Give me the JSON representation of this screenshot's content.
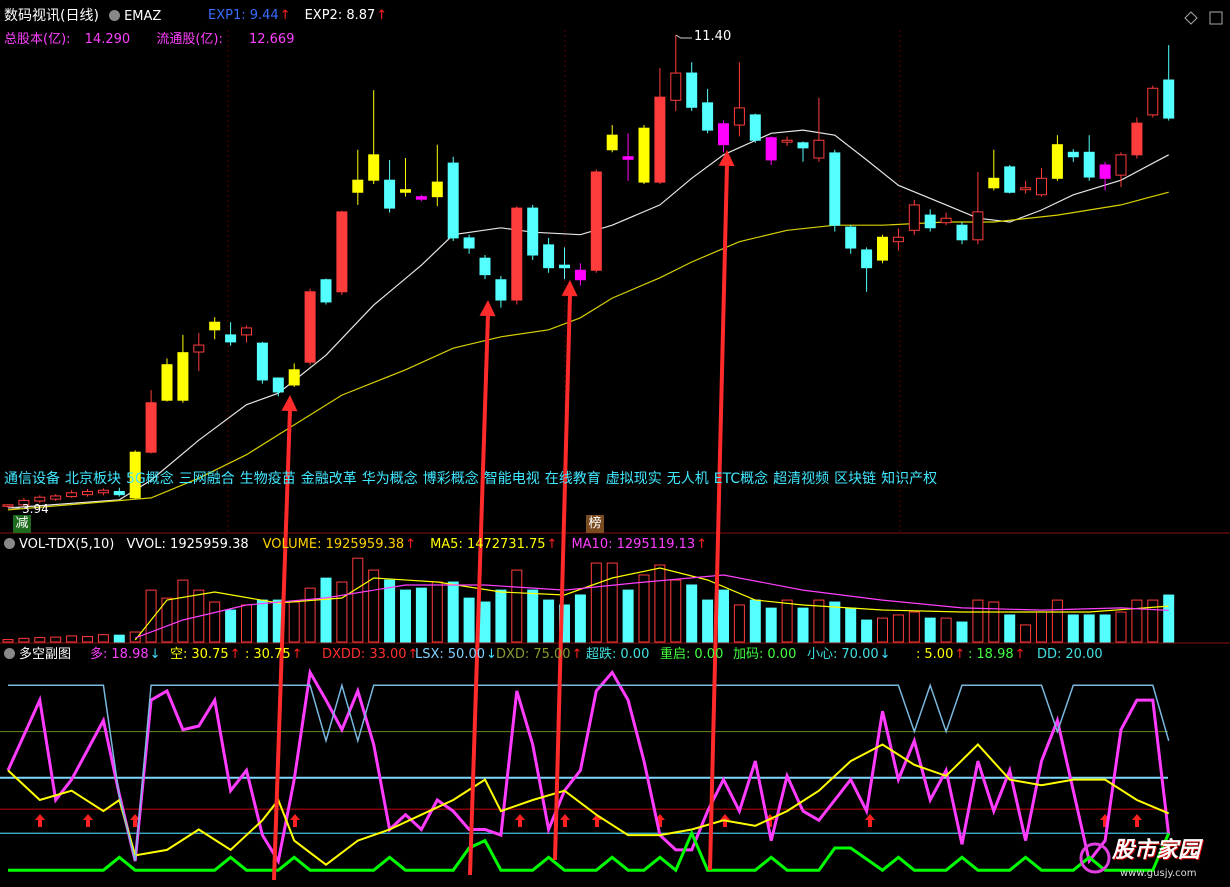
{
  "header": {
    "title": "数码视讯(日线)",
    "indicator": "EMAZ",
    "exp": [
      {
        "text": "EXP1: 9.44",
        "color": "#3a6cff",
        "arrow": "↑"
      },
      {
        "text": "EXP2: 8.87",
        "color": "#ffffff",
        "arrow": "↑"
      }
    ],
    "share_info": [
      {
        "label": "总股本(亿):",
        "value": "14.290"
      },
      {
        "label": "流通股(亿):",
        "value": "12.669"
      }
    ],
    "concepts": [
      "通信设备",
      "北京板块",
      "5G概念",
      "三网融合",
      "生物疫苗",
      "金融改革",
      "华为概念",
      "博彩概念",
      "智能电视",
      "在线教育",
      "虚拟现实",
      "无人机",
      "ETC概念",
      "超清视频",
      "区块链",
      "知识产权"
    ],
    "tags": [
      "减",
      "榜"
    ],
    "max_label": "11.40",
    "min_label": "3.94"
  },
  "chart_data": [
    {
      "type": "candlestick",
      "ylim": [
        3.94,
        11.4
      ],
      "open": [
        3.97,
        3.99,
        4.05,
        4.08,
        4.12,
        4.15,
        4.18,
        4.2,
        4.1,
        4.82,
        5.64,
        5.64,
        6.4,
        6.75,
        6.67,
        6.67,
        6.54,
        5.99,
        5.88,
        6.24,
        7.54,
        7.35,
        8.92,
        9.11,
        9.11,
        8.96,
        8.85,
        8.85,
        9.38,
        8.2,
        7.88,
        7.54,
        7.22,
        8.67,
        8.09,
        7.77,
        7.69,
        7.69,
        9.59,
        9.48,
        9.08,
        9.08,
        10.37,
        10.8,
        10.33,
        10.0,
        9.98,
        10.14,
        9.78,
        9.71,
        9.7,
        9.46,
        9.54,
        8.37,
        8.01,
        7.85,
        8.14,
        8.32,
        8.56,
        8.44,
        8.4,
        8.17,
        8.99,
        9.32,
        8.96,
        8.88,
        9.14,
        9.55,
        9.55,
        9.35,
        9.19,
        9.51,
        10.14,
        10.69
      ],
      "high": [
        4.0,
        4.1,
        4.14,
        4.16,
        4.22,
        4.24,
        4.25,
        4.26,
        4.85,
        5.8,
        6.3,
        6.67,
        6.7,
        6.95,
        6.87,
        6.82,
        6.56,
        6.0,
        6.22,
        7.4,
        7.56,
        8.63,
        9.59,
        10.53,
        9.43,
        9.46,
        8.88,
        9.67,
        9.48,
        8.25,
        7.93,
        7.6,
        8.7,
        8.72,
        8.2,
        8.05,
        7.8,
        9.28,
        9.98,
        9.85,
        9.98,
        10.88,
        11.4,
        10.97,
        10.55,
        10.05,
        10.97,
        10.16,
        9.8,
        9.8,
        9.72,
        10.41,
        9.59,
        8.4,
        8.05,
        8.25,
        8.35,
        8.8,
        8.65,
        8.6,
        8.45,
        9.24,
        9.59,
        9.35,
        9.1,
        9.3,
        9.82,
        9.6,
        9.82,
        9.4,
        9.55,
        10.1,
        10.6,
        11.24
      ],
      "low": [
        3.94,
        3.97,
        4.02,
        4.05,
        4.1,
        4.12,
        4.14,
        4.12,
        4.08,
        4.8,
        5.62,
        5.6,
        6.1,
        6.6,
        6.5,
        6.55,
        5.9,
        5.7,
        5.85,
        6.2,
        7.15,
        7.3,
        8.72,
        9.05,
        8.6,
        8.85,
        8.78,
        8.7,
        8.15,
        7.95,
        7.55,
        7.1,
        7.15,
        7.85,
        7.65,
        7.55,
        7.45,
        7.65,
        9.55,
        9.1,
        9.05,
        9.05,
        10.2,
        10.2,
        9.85,
        9.55,
        9.8,
        9.7,
        9.35,
        9.65,
        9.4,
        9.4,
        8.3,
        7.95,
        7.35,
        7.8,
        8.0,
        8.25,
        8.3,
        8.4,
        8.1,
        8.1,
        8.95,
        8.9,
        8.9,
        8.85,
        9.1,
        9.4,
        9.1,
        8.95,
        9.0,
        9.45,
        10.1,
        10.05
      ],
      "close": [
        3.99,
        4.06,
        4.11,
        4.13,
        4.18,
        4.2,
        4.22,
        4.15,
        4.82,
        5.6,
        6.2,
        6.39,
        6.51,
        6.87,
        6.56,
        6.78,
        5.96,
        5.77,
        6.12,
        7.35,
        7.19,
        8.61,
        9.11,
        9.51,
        8.67,
        8.92,
        8.81,
        9.08,
        8.2,
        8.04,
        7.62,
        7.22,
        8.67,
        7.93,
        7.73,
        7.73,
        7.54,
        9.24,
        9.82,
        9.44,
        9.93,
        10.42,
        10.8,
        10.26,
        9.9,
        9.67,
        10.25,
        9.74,
        9.43,
        9.74,
        9.62,
        9.74,
        8.4,
        8.04,
        7.73,
        8.21,
        8.21,
        8.72,
        8.36,
        8.51,
        8.17,
        8.61,
        9.14,
        8.92,
        8.99,
        9.14,
        9.67,
        9.48,
        9.16,
        9.14,
        9.51,
        10.01,
        10.56,
        10.09
      ],
      "colors": [
        "#ff3c3c",
        "#ff3c3c",
        "#ff3c3c",
        "#ff3c3c",
        "#ff3c3c",
        "#ff3c3c",
        "#ff3c3c",
        "#54ffff",
        "#ffff00",
        "#ff3c3c",
        "#ffff00",
        "#ffff00",
        "#ff3c3c",
        "#ffff00",
        "#54ffff",
        "#ff3c3c",
        "#54ffff",
        "#54ffff",
        "#ffff00",
        "#ff3c3c",
        "#54ffff",
        "#ff3c3c",
        "#ffff00",
        "#ffff00",
        "#54ffff",
        "#ffff00",
        "#ff00ff",
        "#ffff00",
        "#54ffff",
        "#54ffff",
        "#54ffff",
        "#54ffff",
        "#ff3c3c",
        "#54ffff",
        "#54ffff",
        "#54ffff",
        "#ff00ff",
        "#ff3c3c",
        "#ffff00",
        "#ff00ff",
        "#ffff00",
        "#ff3c3c",
        "#ff3c3c",
        "#54ffff",
        "#54ffff",
        "#ff00ff",
        "#ff3c3c",
        "#54ffff",
        "#ff00ff",
        "#ff3c3c",
        "#54ffff",
        "#ff3c3c",
        "#54ffff",
        "#54ffff",
        "#54ffff",
        "#ffff00",
        "#ff3c3c",
        "#ff3c3c",
        "#54ffff",
        "#ff3c3c",
        "#54ffff",
        "#ff3c3c",
        "#ffff00",
        "#54ffff",
        "#ff3c3c",
        "#ff3c3c",
        "#ffff00",
        "#54ffff",
        "#54ffff",
        "#ff00ff",
        "#ff3c3c",
        "#ff3c3c",
        "#ff3c3c",
        "#54ffff"
      ],
      "lines": [
        {
          "color": "#e6e6e6",
          "x": [
            0,
            7,
            9,
            12,
            15,
            17,
            20,
            23,
            26,
            28,
            31,
            33,
            36,
            38,
            41,
            43,
            45,
            48,
            50,
            52,
            54,
            56,
            59,
            61,
            63,
            65,
            67,
            70,
            73
          ],
          "values": [
            3.94,
            4.07,
            4.38,
            5.01,
            5.57,
            5.75,
            6.35,
            7.14,
            7.77,
            8.25,
            8.36,
            8.29,
            8.25,
            8.4,
            8.72,
            9.14,
            9.51,
            9.85,
            9.9,
            9.82,
            9.43,
            9.03,
            8.72,
            8.51,
            8.45,
            8.64,
            8.88,
            9.11,
            9.51
          ]
        },
        {
          "color": "#d8d000",
          "x": [
            0,
            9,
            12,
            15,
            18,
            21,
            25,
            28,
            31,
            34,
            36,
            38,
            41,
            43,
            46,
            49,
            52,
            55,
            59,
            62,
            66,
            70,
            73
          ],
          "values": [
            3.91,
            4.1,
            4.41,
            4.78,
            5.25,
            5.72,
            6.12,
            6.46,
            6.64,
            6.75,
            6.94,
            7.25,
            7.57,
            7.82,
            8.14,
            8.32,
            8.4,
            8.4,
            8.45,
            8.45,
            8.56,
            8.72,
            8.92
          ]
        }
      ]
    },
    {
      "type": "bar",
      "title": "VOL-TDX(5,10)",
      "ylim": [
        0,
        3570000
      ],
      "items": [
        {
          "text": "VVOL: 1925959.38",
          "color": "#ffffff"
        },
        {
          "text": "VOLUME: 1925959.38",
          "color": "#ffd200",
          "arrow": "↑"
        },
        {
          "text": "MA5: 1472731.75",
          "color": "#ffff00",
          "arrow": "↑"
        },
        {
          "text": "MA10: 1295119.13",
          "color": "#ff40ff",
          "arrow": "↑"
        }
      ],
      "values": [
        100000,
        150000,
        180000,
        200000,
        250000,
        220000,
        300000,
        280000,
        410000,
        2130000,
        1800000,
        2540000,
        2130000,
        1640000,
        1310000,
        1520000,
        1720000,
        1720000,
        1640000,
        2210000,
        2620000,
        2460000,
        3440000,
        2950000,
        2540000,
        2130000,
        2210000,
        2460000,
        2460000,
        1800000,
        1640000,
        2130000,
        2950000,
        2130000,
        1720000,
        1520000,
        1930000,
        3240000,
        3240000,
        2130000,
        2750000,
        3160000,
        2540000,
        2340000,
        1720000,
        2130000,
        1520000,
        1720000,
        1390000,
        1720000,
        1390000,
        1720000,
        1640000,
        1390000,
        900000,
        980000,
        1110000,
        1230000,
        980000,
        980000,
        820000,
        1720000,
        1640000,
        1110000,
        700000,
        1230000,
        1720000,
        1110000,
        1110000,
        1110000,
        1230000,
        1720000,
        1720000,
        1925959.38
      ],
      "lines": [
        {
          "color": "#ffff00",
          "x": [
            8,
            10,
            13,
            17,
            21,
            23,
            27,
            31,
            35,
            38,
            41,
            44,
            47,
            50,
            55,
            60,
            64,
            68,
            73
          ],
          "values": [
            82000,
            1723000,
            2052000,
            1600000,
            1805000,
            2626000,
            2462000,
            2052000,
            1929000,
            2626000,
            3037000,
            2544000,
            1723000,
            1518000,
            1313000,
            1231000,
            1231000,
            1231000,
            1472731.75
          ]
        },
        {
          "color": "#ff40ff",
          "x": [
            8,
            11,
            15,
            20,
            25,
            30,
            35,
            40,
            45,
            50,
            55,
            60,
            65,
            70,
            73
          ],
          "values": [
            164000,
            903000,
            1520000,
            1810000,
            2340000,
            2340000,
            2130000,
            2460000,
            2750000,
            2130000,
            1720000,
            1400000,
            1310000,
            1400000,
            1295119.13
          ]
        }
      ]
    },
    {
      "type": "line",
      "title": "多空副图",
      "ylim": [
        -8,
        111
      ],
      "items": [
        {
          "name": "多:",
          "value": 18.98,
          "label": "18.98",
          "color": "#ff40ff",
          "arrow": "↓",
          "arrow_color": "#40e0ff"
        },
        {
          "name": "空:",
          "value": 30.75,
          "label": "30.75",
          "color": "#ffff00",
          "arrow": "↑",
          "arrow_color": "#ff2020"
        },
        {
          "name": ":",
          "value": 30.75,
          "label": "30.75",
          "color": "#ffff00",
          "arrow": "↑",
          "arrow_color": "#ff2020"
        },
        {
          "name": "DXDD:",
          "value": 33,
          "label": "33.00",
          "color": "#ff3030",
          "arrow": "↑",
          "arrow_color": "#ff2020",
          "line_color": "#b00000"
        },
        {
          "name": "LSX:",
          "value": 50,
          "label": "50.00",
          "color": "#80d0ff",
          "arrow": "↓",
          "arrow_color": "#40e0ff",
          "line_color": "#80d8ff"
        },
        {
          "name": "DXD:",
          "value": 75,
          "label": "75.00",
          "color": "#8a9a30",
          "arrow": "↑",
          "arrow_color": "#ff2020",
          "line_color": "#5a7a1e"
        },
        {
          "name": "超跌:",
          "value": 0,
          "label": "0.00",
          "color": "#40e0e0"
        },
        {
          "name": "重启:",
          "value": 0,
          "label": "0.00",
          "color": "#40ff40"
        },
        {
          "name": "加码:",
          "value": 0,
          "label": "0.00",
          "color": "#40ff40"
        },
        {
          "name": "小心:",
          "value": 70,
          "label": "70.00",
          "color": "#40e0e0",
          "arrow": "↓",
          "arrow_color": "#40e0ff"
        },
        {
          "name": ":",
          "value": 5,
          "label": "5.00",
          "color": "#ffff00",
          "arrow": "↑",
          "arrow_color": "#ff2020"
        },
        {
          "name": ":",
          "value": 18.98,
          "label": "18.98",
          "color": "#40ff40",
          "arrow": "↑",
          "arrow_color": "#ff2020"
        },
        {
          "name": "DD:",
          "value": 20,
          "label": "20.00",
          "color": "#40e0e0",
          "line_color": "#40c0e0"
        }
      ],
      "series": [
        {
          "color": "#ff3cff",
          "width": 3,
          "values": [
            54,
            73,
            92,
            38,
            49,
            65,
            81,
            41,
            5,
            92,
            97,
            76,
            78,
            92,
            43,
            54,
            19,
            5,
            49,
            107,
            92,
            76,
            97,
            68,
            22,
            30,
            22,
            38,
            32,
            22,
            22,
            19,
            97,
            68,
            22,
            43,
            54,
            97,
            107,
            92,
            59,
            19,
            11,
            11,
            32,
            49,
            32,
            59,
            16,
            51,
            32,
            27,
            38,
            49,
            32,
            86,
            49,
            70,
            38,
            54,
            14,
            59,
            32,
            54,
            16,
            59,
            81,
            43,
            5,
            16,
            76,
            92,
            92,
            18.98
          ]
        },
        {
          "color": "#ffff00",
          "width": 2,
          "x": [
            0,
            2,
            4,
            6,
            7,
            8,
            10,
            12,
            14,
            16,
            17,
            18,
            20,
            22,
            24,
            26,
            28,
            30,
            31,
            33,
            35,
            37,
            39,
            41,
            43,
            45,
            47,
            49,
            51,
            53,
            55,
            57,
            59,
            61,
            63,
            65,
            67,
            69,
            71,
            73
          ],
          "values": [
            54,
            38,
            43,
            32,
            38,
            8,
            11,
            22,
            11,
            27,
            38,
            16,
            3,
            16,
            22,
            30,
            38,
            49,
            32,
            38,
            43,
            30,
            19,
            19,
            22,
            27,
            24,
            32,
            43,
            59,
            68,
            57,
            51,
            68,
            49,
            46,
            49,
            49,
            38,
            30.75
          ]
        },
        {
          "color": "#7ab8e0",
          "width": 1.5,
          "x": [
            0,
            6,
            7,
            8,
            9,
            19,
            20,
            21,
            22,
            23,
            56,
            57,
            58,
            59,
            60,
            65,
            66,
            67,
            72,
            73
          ],
          "values": [
            100,
            100,
            40,
            5,
            100,
            100,
            70,
            100,
            70,
            100,
            100,
            75,
            100,
            75,
            100,
            100,
            75,
            100,
            100,
            70
          ]
        },
        {
          "color": "#00ff00",
          "width": 3,
          "x": [
            0,
            6,
            7,
            8,
            13,
            14,
            15,
            17,
            18,
            19,
            23,
            24,
            25,
            28,
            29,
            30,
            31,
            33,
            34,
            35,
            37,
            38,
            39,
            40,
            41,
            42,
            43,
            44,
            45,
            47,
            48,
            49,
            51,
            52,
            53,
            55,
            56,
            57,
            59,
            60,
            61,
            63,
            64,
            65,
            67,
            68,
            69,
            72,
            73
          ],
          "values": [
            0,
            0,
            7,
            0,
            0,
            7,
            0,
            0,
            7,
            0,
            0,
            7,
            0,
            0,
            12,
            16,
            0,
            0,
            7,
            0,
            0,
            7,
            0,
            0,
            7,
            0,
            20,
            0,
            0,
            0,
            7,
            0,
            0,
            12,
            12,
            0,
            7,
            0,
            0,
            7,
            0,
            0,
            7,
            0,
            0,
            7,
            0,
            0,
            20
          ]
        }
      ]
    }
  ],
  "watermark": {
    "name": "股市家园",
    "url": "www.gusjy.com"
  }
}
